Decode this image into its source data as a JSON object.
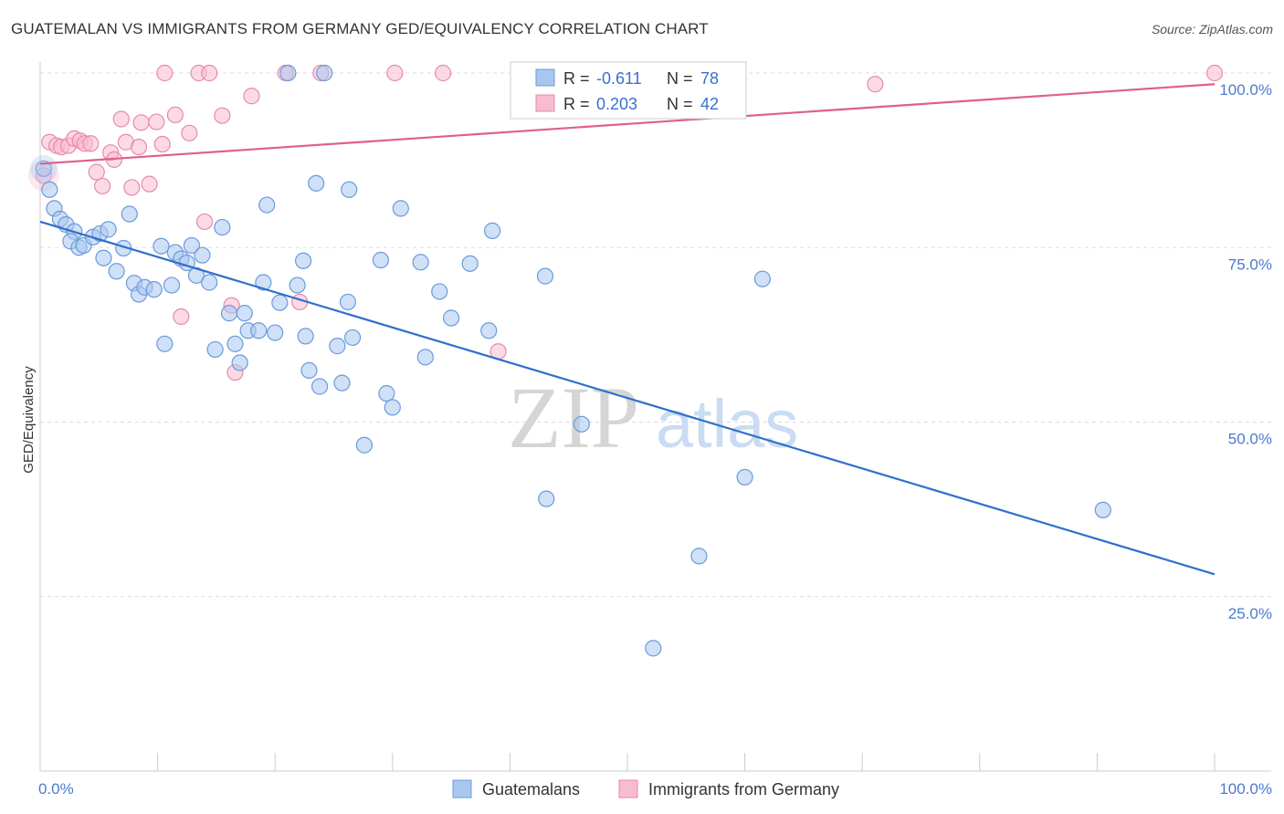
{
  "title": "GUATEMALAN VS IMMIGRANTS FROM GERMANY GED/EQUIVALENCY CORRELATION CHART",
  "source": "Source: ZipAtlas.com",
  "watermark": {
    "zip": "ZIP",
    "atlas": "atlas"
  },
  "legend_top": [
    {
      "r_label": "R =",
      "r_value": "-0.611",
      "n_label": "N =",
      "n_value": "78"
    },
    {
      "r_label": "R =",
      "r_value": "0.203",
      "n_label": "N =",
      "n_value": "42"
    }
  ],
  "colors": {
    "blue_fill": "#a9c7ee",
    "blue_stroke": "#6a9bdc",
    "blue_line": "#2f6fcc",
    "pink_fill": "#f7bcd0",
    "pink_stroke": "#e88aaa",
    "pink_line": "#e0608a",
    "grid": "#dddddd",
    "axis_text": "#4a7bd0"
  },
  "chart_data": {
    "type": "scatter",
    "title": "GUATEMALAN VS IMMIGRANTS FROM GERMANY GED/EQUIVALENCY CORRELATION CHART",
    "xlabel": "",
    "ylabel": "GED/Equivalency",
    "xlim": [
      0,
      100
    ],
    "ylim": [
      0,
      100
    ],
    "x_tick_labels": [
      "0.0%",
      "100.0%"
    ],
    "y_ticks": [
      25,
      50,
      75,
      100
    ],
    "y_tick_labels": [
      "25.0%",
      "50.0%",
      "75.0%",
      "100.0%"
    ],
    "grid": true,
    "legend_position": "bottom",
    "series": [
      {
        "name": "Guatemalans",
        "color": "#a9c7ee",
        "trend": {
          "x": [
            0,
            100
          ],
          "y": [
            78.7,
            28.2
          ]
        },
        "points": [
          [
            0.3,
            86.3
          ],
          [
            0.8,
            83.3
          ],
          [
            1.2,
            80.6
          ],
          [
            1.7,
            79.1
          ],
          [
            2.2,
            78.3
          ],
          [
            2.9,
            77.3
          ],
          [
            2.6,
            75.9
          ],
          [
            3.3,
            75.0
          ],
          [
            3.7,
            75.3
          ],
          [
            4.5,
            76.5
          ],
          [
            5.1,
            77.0
          ],
          [
            5.8,
            77.6
          ],
          [
            5.4,
            73.5
          ],
          [
            6.5,
            71.6
          ],
          [
            7.1,
            74.9
          ],
          [
            7.6,
            79.8
          ],
          [
            8.0,
            69.9
          ],
          [
            8.4,
            68.3
          ],
          [
            8.9,
            69.3
          ],
          [
            9.7,
            69.0
          ],
          [
            10.3,
            75.2
          ],
          [
            10.6,
            61.2
          ],
          [
            11.2,
            69.6
          ],
          [
            11.5,
            74.3
          ],
          [
            12.0,
            73.4
          ],
          [
            12.5,
            72.8
          ],
          [
            12.9,
            75.3
          ],
          [
            13.3,
            71.0
          ],
          [
            13.8,
            73.9
          ],
          [
            14.4,
            70.0
          ],
          [
            14.9,
            60.4
          ],
          [
            15.5,
            77.9
          ],
          [
            16.1,
            65.6
          ],
          [
            16.6,
            61.2
          ],
          [
            17.0,
            58.5
          ],
          [
            17.4,
            65.6
          ],
          [
            17.7,
            63.1
          ],
          [
            18.6,
            63.1
          ],
          [
            19.0,
            70.0
          ],
          [
            19.3,
            81.1
          ],
          [
            20.0,
            62.8
          ],
          [
            20.4,
            67.1
          ],
          [
            21.1,
            100.0
          ],
          [
            21.9,
            69.6
          ],
          [
            22.4,
            73.1
          ],
          [
            22.6,
            62.3
          ],
          [
            22.9,
            57.4
          ],
          [
            23.5,
            84.2
          ],
          [
            23.8,
            55.1
          ],
          [
            24.2,
            100.0
          ],
          [
            25.3,
            60.9
          ],
          [
            25.7,
            55.6
          ],
          [
            26.2,
            67.2
          ],
          [
            26.3,
            83.3
          ],
          [
            26.6,
            62.1
          ],
          [
            27.6,
            46.7
          ],
          [
            29.0,
            73.2
          ],
          [
            29.5,
            54.1
          ],
          [
            30.0,
            52.1
          ],
          [
            30.7,
            80.6
          ],
          [
            32.4,
            72.9
          ],
          [
            32.8,
            59.3
          ],
          [
            34.0,
            68.7
          ],
          [
            35.0,
            64.9
          ],
          [
            36.6,
            72.7
          ],
          [
            38.2,
            63.1
          ],
          [
            38.5,
            77.4
          ],
          [
            43.0,
            70.9
          ],
          [
            43.1,
            39.0
          ],
          [
            46.1,
            49.7
          ],
          [
            52.2,
            17.6
          ],
          [
            56.1,
            30.8
          ],
          [
            60.0,
            42.1
          ],
          [
            61.5,
            70.5
          ],
          [
            90.5,
            37.4
          ]
        ]
      },
      {
        "name": "Immigrants from Germany",
        "color": "#f7bcd0",
        "trend": {
          "x": [
            0,
            100
          ],
          "y": [
            87.0,
            98.4
          ]
        },
        "points": [
          [
            0.3,
            85.3
          ],
          [
            0.8,
            90.1
          ],
          [
            1.4,
            89.6
          ],
          [
            1.8,
            89.4
          ],
          [
            2.4,
            89.6
          ],
          [
            2.9,
            90.6
          ],
          [
            3.4,
            90.3
          ],
          [
            3.8,
            89.9
          ],
          [
            4.3,
            89.9
          ],
          [
            4.8,
            85.8
          ],
          [
            5.3,
            83.8
          ],
          [
            6.0,
            88.6
          ],
          [
            6.3,
            87.6
          ],
          [
            6.9,
            93.4
          ],
          [
            7.3,
            90.1
          ],
          [
            7.8,
            83.6
          ],
          [
            8.4,
            89.4
          ],
          [
            8.6,
            92.9
          ],
          [
            9.3,
            84.1
          ],
          [
            9.9,
            93.0
          ],
          [
            10.4,
            89.8
          ],
          [
            10.6,
            100.0
          ],
          [
            11.5,
            94.0
          ],
          [
            12.0,
            65.1
          ],
          [
            12.7,
            91.4
          ],
          [
            13.5,
            100.0
          ],
          [
            14.0,
            78.7
          ],
          [
            14.4,
            100.0
          ],
          [
            15.5,
            93.9
          ],
          [
            16.3,
            66.7
          ],
          [
            16.6,
            57.1
          ],
          [
            18.0,
            96.7
          ],
          [
            20.9,
            100.0
          ],
          [
            22.1,
            67.2
          ],
          [
            23.9,
            100.0
          ],
          [
            30.2,
            100.0
          ],
          [
            34.3,
            100.0
          ],
          [
            39.0,
            60.1
          ],
          [
            47.6,
            100.0
          ],
          [
            71.1,
            98.4
          ],
          [
            100.0,
            100.0
          ]
        ]
      }
    ]
  }
}
